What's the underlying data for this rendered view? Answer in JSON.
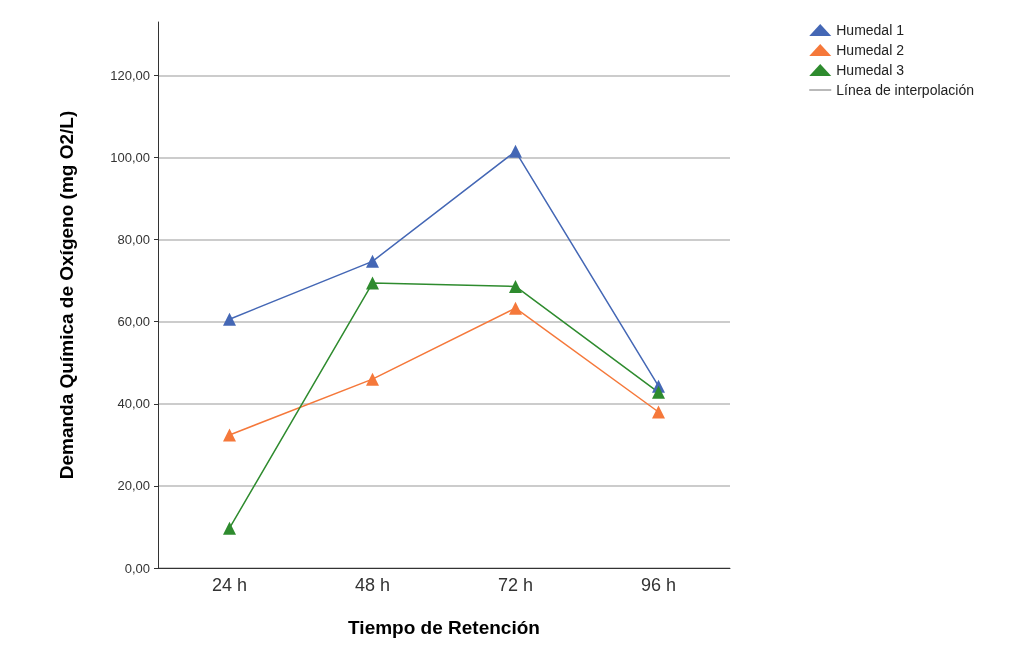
{
  "chart_data": {
    "type": "line",
    "xlabel": "Tiempo de Retención",
    "ylabel": "Demanda Química de Oxígeno (mg O2/L)",
    "categories": [
      "24 h",
      "48 h",
      "72 h",
      "96 h"
    ],
    "series": [
      {
        "name": "Humedal 1",
        "color": "#4467b5",
        "values": [
          60.6,
          74.7,
          101.5,
          44.3
        ]
      },
      {
        "name": "Humedal 2",
        "color": "#f5783a",
        "values": [
          32.4,
          46.0,
          63.3,
          38.0
        ]
      },
      {
        "name": "Humedal 3",
        "color": "#2e8b2e",
        "values": [
          9.7,
          69.4,
          68.6,
          42.8
        ]
      },
      {
        "name": "Línea de interpolación",
        "color": "#808080",
        "marker": "none",
        "values": [
          null,
          null,
          null,
          null
        ]
      }
    ],
    "ylim": [
      0,
      133
    ],
    "yticks": [
      {
        "value": 0,
        "label": "0,00"
      },
      {
        "value": 20,
        "label": "20,00"
      },
      {
        "value": 40,
        "label": "40,00"
      },
      {
        "value": 60,
        "label": "60,00"
      },
      {
        "value": 80,
        "label": "80,00"
      },
      {
        "value": 100,
        "label": "100,00"
      },
      {
        "value": 120,
        "label": "120,00"
      }
    ],
    "grid": "y",
    "legend": "top right",
    "marker": "triangle",
    "line_style": "solid"
  }
}
